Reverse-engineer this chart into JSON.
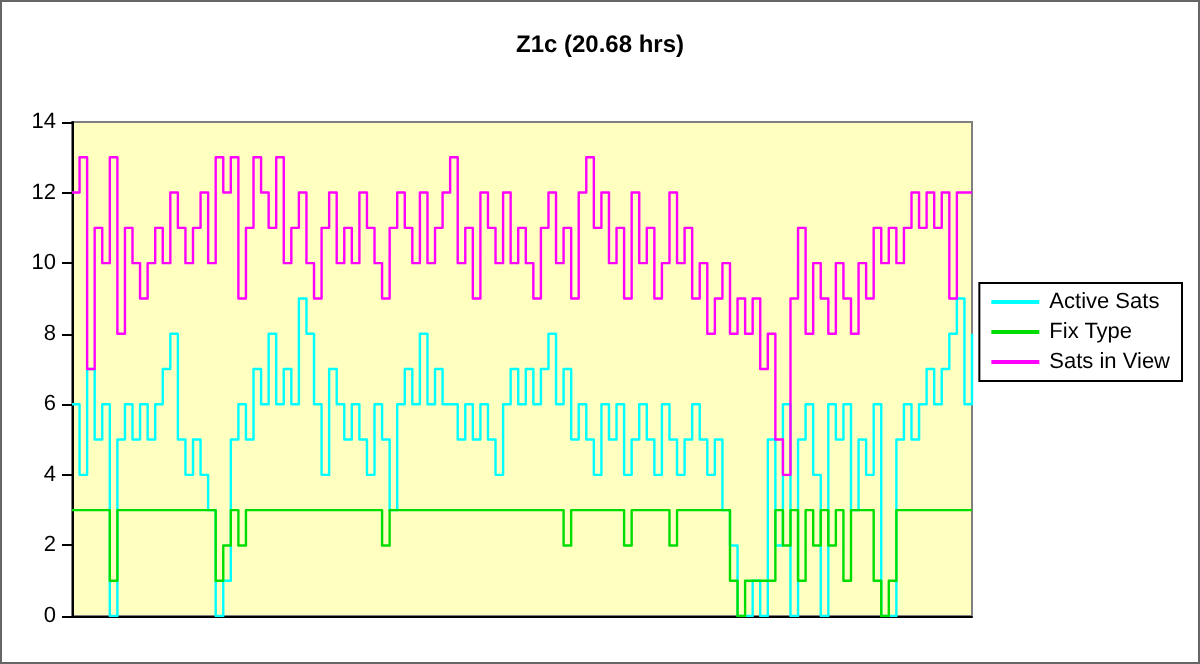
{
  "chart_data": {
    "type": "step",
    "title": "Z1c (20.68 hrs)",
    "categories": [
      null,
      null,
      null,
      null,
      null,
      null,
      null,
      null,
      null,
      null,
      null,
      null,
      null,
      null,
      null,
      null,
      null,
      null,
      null,
      null,
      null,
      null,
      null,
      null,
      null,
      null,
      null,
      null,
      null,
      null,
      null,
      null,
      null,
      null,
      null,
      null,
      null,
      null,
      null,
      null,
      null,
      null,
      null,
      null,
      null,
      null,
      null,
      null,
      null,
      null,
      null,
      null,
      null,
      null,
      null,
      null,
      null,
      null,
      null,
      null,
      null,
      null,
      null,
      null,
      null,
      null,
      null,
      null,
      null,
      null,
      null,
      null,
      null,
      null,
      null,
      null,
      null,
      null,
      null,
      null,
      null,
      null,
      null,
      null,
      null,
      null,
      null,
      null,
      null,
      null,
      null,
      null,
      null,
      null,
      null,
      null,
      null,
      null,
      null,
      null,
      null,
      null,
      null,
      null,
      null,
      null,
      null,
      null,
      null,
      null,
      null,
      null,
      null,
      null,
      null,
      null,
      null,
      null,
      null,
      null
    ],
    "series": [
      {
        "name": "Active Sats",
        "color": "#00ffff",
        "values": [
          6,
          4,
          7,
          5,
          6,
          0,
          5,
          6,
          5,
          6,
          5,
          6,
          7,
          8,
          5,
          4,
          5,
          4,
          3,
          0,
          1,
          5,
          6,
          5,
          7,
          6,
          8,
          6,
          7,
          6,
          9,
          8,
          6,
          4,
          7,
          6,
          5,
          6,
          5,
          4,
          6,
          5,
          3,
          6,
          7,
          6,
          8,
          6,
          7,
          6,
          6,
          5,
          6,
          5,
          6,
          5,
          4,
          6,
          7,
          6,
          7,
          6,
          7,
          8,
          6,
          7,
          5,
          6,
          5,
          4,
          6,
          5,
          6,
          4,
          5,
          6,
          5,
          4,
          6,
          5,
          4,
          5,
          6,
          5,
          4,
          5,
          3,
          2,
          0,
          0,
          1,
          0,
          5,
          2,
          6,
          0,
          5,
          6,
          4,
          0,
          6,
          5,
          6,
          3,
          5,
          4,
          6,
          0,
          0,
          5,
          6,
          5,
          6,
          7,
          6,
          7,
          8,
          9,
          6,
          8
        ]
      },
      {
        "name": "Fix Type",
        "color": "#00dd00",
        "values": [
          3,
          3,
          3,
          3,
          3,
          1,
          3,
          3,
          3,
          3,
          3,
          3,
          3,
          3,
          3,
          3,
          3,
          3,
          3,
          1,
          2,
          3,
          2,
          3,
          3,
          3,
          3,
          3,
          3,
          3,
          3,
          3,
          3,
          3,
          3,
          3,
          3,
          3,
          3,
          3,
          3,
          2,
          3,
          3,
          3,
          3,
          3,
          3,
          3,
          3,
          3,
          3,
          3,
          3,
          3,
          3,
          3,
          3,
          3,
          3,
          3,
          3,
          3,
          3,
          3,
          2,
          3,
          3,
          3,
          3,
          3,
          3,
          3,
          2,
          3,
          3,
          3,
          3,
          3,
          2,
          3,
          3,
          3,
          3,
          3,
          3,
          3,
          1,
          0,
          1,
          1,
          1,
          1,
          3,
          2,
          3,
          1,
          3,
          2,
          3,
          2,
          3,
          1,
          3,
          3,
          3,
          1,
          0,
          1,
          3,
          3,
          3,
          3,
          3,
          3,
          3,
          3,
          3,
          3,
          3
        ]
      },
      {
        "name": "Sats in View",
        "color": "#ff00ff",
        "values": [
          12,
          13,
          7,
          11,
          10,
          13,
          8,
          11,
          10,
          9,
          10,
          11,
          10,
          12,
          11,
          10,
          11,
          12,
          10,
          13,
          12,
          13,
          9,
          11,
          13,
          12,
          11,
          13,
          10,
          11,
          12,
          10,
          9,
          11,
          12,
          10,
          11,
          10,
          12,
          11,
          10,
          9,
          11,
          12,
          11,
          10,
          12,
          10,
          11,
          12,
          13,
          10,
          11,
          9,
          12,
          11,
          10,
          12,
          10,
          11,
          10,
          9,
          11,
          12,
          10,
          11,
          9,
          12,
          13,
          11,
          12,
          10,
          11,
          9,
          12,
          10,
          11,
          9,
          10,
          12,
          10,
          11,
          9,
          10,
          8,
          9,
          10,
          8,
          9,
          8,
          9,
          7,
          8,
          5,
          4,
          9,
          11,
          8,
          10,
          9,
          8,
          10,
          9,
          8,
          10,
          9,
          11,
          10,
          11,
          10,
          11,
          12,
          11,
          12,
          11,
          12,
          9,
          12,
          12,
          12
        ]
      }
    ],
    "ylim": [
      0,
      14
    ],
    "yticks": [
      0,
      2,
      4,
      6,
      8,
      10,
      12,
      14
    ],
    "tick_labels": "y",
    "grid": false,
    "legend": "right",
    "line_style": "solid"
  }
}
